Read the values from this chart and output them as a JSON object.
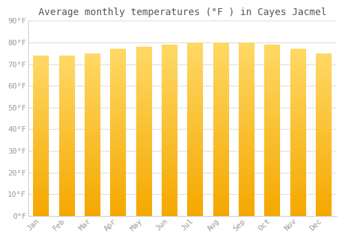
{
  "title": "Average monthly temperatures (°F ) in Cayes Jacmel",
  "months": [
    "Jan",
    "Feb",
    "Mar",
    "Apr",
    "May",
    "Jun",
    "Jul",
    "Aug",
    "Sep",
    "Oct",
    "Nov",
    "Dec"
  ],
  "values": [
    74,
    74,
    75,
    77,
    78,
    79,
    80,
    80,
    80,
    79,
    77,
    75
  ],
  "bar_color_bottom": "#F5A800",
  "bar_color_top": "#FFD966",
  "ylim": [
    0,
    90
  ],
  "ytick_step": 10,
  "background_color": "#FFFFFF",
  "plot_bg_color": "#FFFFFF",
  "grid_color": "#DDDDDD",
  "title_fontsize": 10,
  "tick_fontsize": 8,
  "tick_label_color": "#999999",
  "bar_width": 0.6
}
